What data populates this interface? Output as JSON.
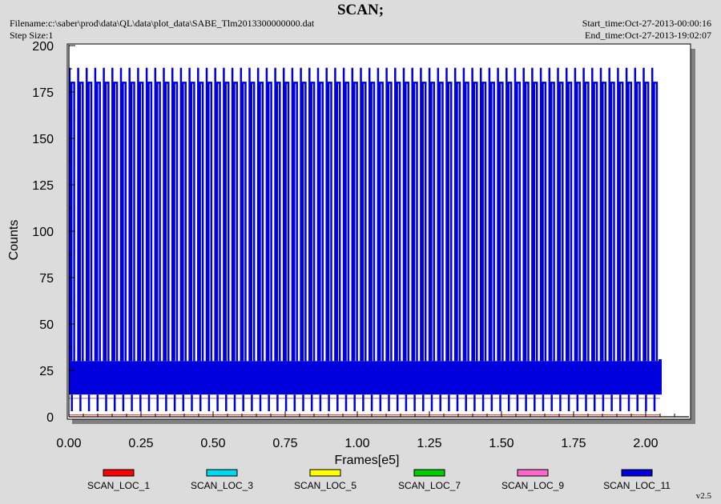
{
  "header": {
    "title": "SCAN;",
    "filename": "Filename:c:\\saber\\prod\\data\\QL\\data\\plot_data\\SABE_Tlm2013300000000.dat",
    "step_size": "Step Size:1",
    "start_time": "Start_time:Oct-27-2013-00:00:16",
    "end_time": "End_time:Oct-27-2013-19:02:07"
  },
  "version": "v2.5",
  "chart_data": {
    "type": "line",
    "xlabel": "Frames[e5]",
    "ylabel": "Counts",
    "xlim": [
      0,
      2.15
    ],
    "ylim": [
      0,
      200
    ],
    "x_ticks": [
      "0.00",
      "0.25",
      "0.50",
      "0.75",
      "1.00",
      "1.25",
      "1.50",
      "1.75",
      "2.00"
    ],
    "y_ticks": [
      "0",
      "25",
      "50",
      "75",
      "100",
      "125",
      "150",
      "175",
      "200"
    ],
    "grid": false,
    "legend_position": "bottom",
    "colors": {
      "background": "#dcdcdc",
      "plot_area": "#ffffff",
      "shadow": "#808080"
    },
    "series": [
      {
        "name": "SCAN_LOC_1",
        "color": "#ff0000",
        "x_range": [
          0,
          2.05
        ],
        "peak": 1,
        "base_range": [
          10,
          10
        ]
      },
      {
        "name": "SCAN_LOC_3",
        "color": "#00d8f0",
        "x_range": [
          0,
          2.05
        ],
        "peak": 10,
        "base_range": [
          10,
          10
        ]
      },
      {
        "name": "SCAN_LOC_5",
        "color": "#ffff00",
        "x_range": [
          0,
          2.05
        ],
        "peak": 10,
        "base_range": [
          10,
          10
        ]
      },
      {
        "name": "SCAN_LOC_7",
        "color": "#00cc00",
        "x_range": [
          0,
          2.05
        ],
        "peak": 10,
        "base_range": [
          10,
          10
        ]
      },
      {
        "name": "SCAN_LOC_9",
        "color": "#ff66cc",
        "x_range": [
          0,
          2.05
        ],
        "peak": 10,
        "base_range": [
          10,
          10
        ]
      },
      {
        "name": "SCAN_LOC_11",
        "color": "#0000dd",
        "x_range": [
          0,
          2.05
        ],
        "peak": 188,
        "plateau": 180,
        "base_range": [
          12,
          30
        ],
        "min": 3,
        "cycles": 69
      }
    ]
  }
}
